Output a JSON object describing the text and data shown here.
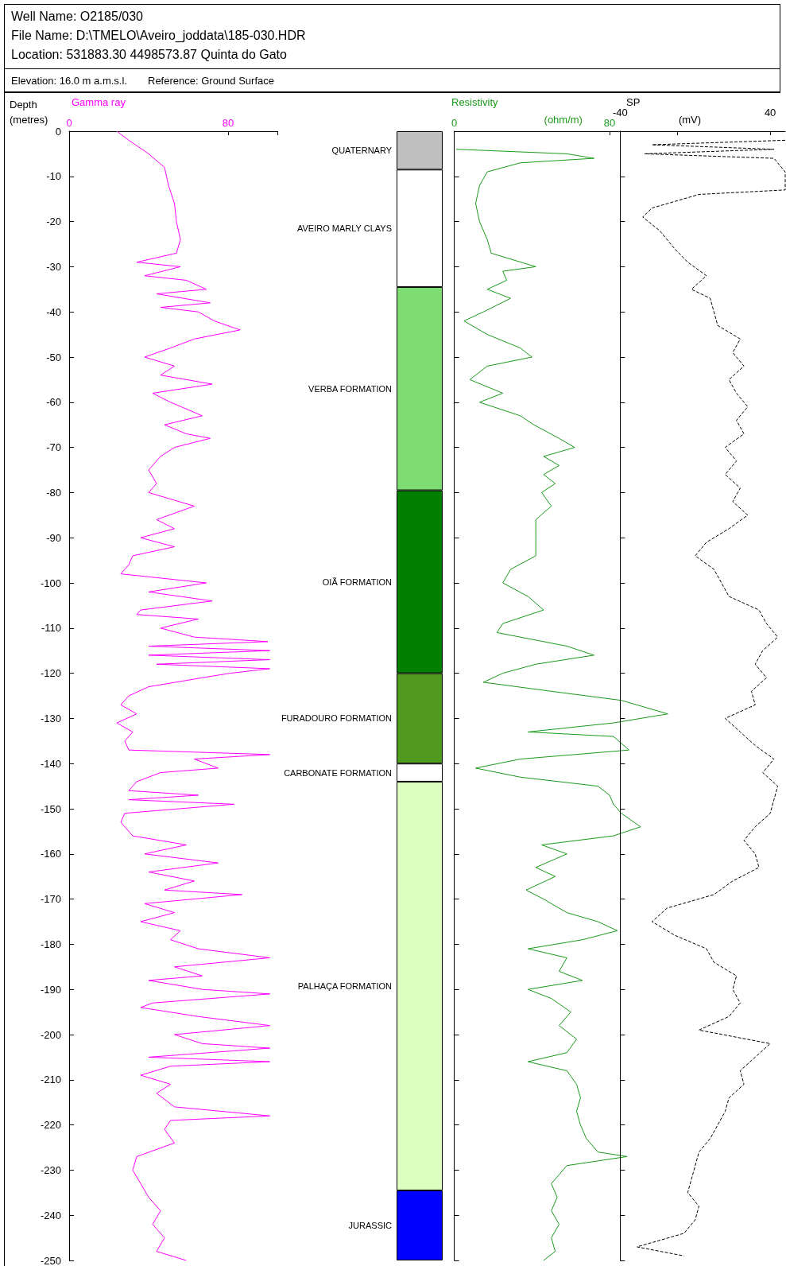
{
  "chart_data": [
    {
      "type": "line",
      "title": "Well Name: O2185/030",
      "subtitle": "File Name: D:\\TMELO\\Aveiro_joddata\\185-030.HDR",
      "annotations": [
        "Location: 531883.30 4498573.87 Quinta do Gato",
        "Elevation: 16.0 m a.m.s.l.",
        "Reference: Ground Surface"
      ],
      "xlabel": "Gamma ray",
      "ylabel": "Depth (metres)",
      "color": "#ff00ff",
      "marker": "none",
      "x": [
        24,
        30,
        40,
        48,
        50,
        53,
        54,
        56,
        54,
        34,
        56,
        38,
        59,
        69,
        44,
        71,
        46,
        65,
        73,
        86,
        63,
        51,
        38,
        53,
        46,
        72,
        42,
        51,
        67,
        48,
        59,
        71,
        53,
        46,
        40,
        44,
        40,
        63,
        44,
        53,
        36,
        53,
        32,
        30,
        26,
        69,
        40,
        72,
        36,
        34,
        65,
        46,
        63,
        100,
        40,
        101,
        40,
        101,
        44,
        101,
        81,
        67,
        40,
        30,
        26,
        34,
        24,
        32,
        28,
        30,
        101,
        63,
        75,
        46,
        34,
        30,
        65,
        30,
        83,
        28,
        26,
        32,
        59,
        38,
        75,
        40,
        63,
        48,
        87,
        38,
        53,
        36,
        56,
        51,
        65,
        101,
        53,
        67,
        40,
        67,
        101,
        42,
        36,
        65,
        101,
        53,
        67,
        101,
        40,
        101,
        51,
        36,
        51,
        44,
        53,
        101,
        51,
        48,
        53,
        34,
        32,
        36,
        40,
        46,
        42,
        48,
        44,
        59
      ],
      "values": [
        0,
        -2,
        -5,
        -8,
        -12,
        -16,
        -20,
        -24,
        -27,
        -29,
        -30,
        -32,
        -33,
        -35,
        -36,
        -38,
        -39,
        -40,
        -42,
        -44,
        -46,
        -48,
        -50,
        -52,
        -54,
        -56,
        -58,
        -60,
        -63,
        -65,
        -67,
        -68,
        -70,
        -72,
        -75,
        -78,
        -80,
        -83,
        -86,
        -88,
        -90,
        -92,
        -94,
        -96,
        -98,
        -100,
        -102,
        -104,
        -106,
        -107,
        -108,
        -110,
        -112,
        -113,
        -114,
        -115,
        -116,
        -117,
        -118,
        -119,
        -120,
        -121,
        -123,
        -125,
        -127,
        -129,
        -131,
        -133,
        -135,
        -137,
        -138,
        -139,
        -141,
        -142,
        -144,
        -146,
        -147,
        -148,
        -149,
        -151,
        -153,
        -156,
        -158,
        -160,
        -162,
        -164,
        -166,
        -168,
        -169,
        -171,
        -173,
        -175,
        -177,
        -179,
        -181,
        -183,
        -185,
        -187,
        -188,
        -190,
        -191,
        -193,
        -194,
        -196,
        -198,
        -200,
        -202,
        -203,
        -205,
        -206,
        -207,
        -209,
        -211,
        -213,
        -216,
        -218,
        -219,
        -221,
        -224,
        -227,
        -230,
        -233,
        -236,
        -239,
        -242,
        -245,
        -248,
        -250
      ],
      "xlim": [
        0,
        105
      ],
      "xticks": [
        0,
        80,
        {
          "value": 105,
          "label": null
        }
      ],
      "ylim": [
        -250,
        0
      ],
      "yticks": [
        0,
        -10,
        -20,
        -30,
        -40,
        -50,
        -60,
        -70,
        -80,
        -90,
        -100,
        -110,
        -120,
        -130,
        -140,
        -150,
        -160,
        -170,
        -180,
        -190,
        -200,
        -210,
        -220,
        -230,
        -240,
        -250
      ]
    },
    {
      "type": "bar",
      "stacked": true,
      "categories": [
        null
      ],
      "ylim": [
        -250,
        0
      ],
      "tick_labels": false,
      "series": [
        {
          "name": "QUATERNARY",
          "color": "#c0c0c0",
          "values": [
            -8.5
          ]
        },
        {
          "name": "AVEIRO MARLY CLAYS",
          "color": "#ffffff",
          "values": [
            -26
          ]
        },
        {
          "name": "VERBA FORMATION",
          "color": "#7ddc72",
          "values": [
            -45
          ]
        },
        {
          "name": "OIÃ FORMATION",
          "color": "#007f00",
          "values": [
            -40.5
          ]
        },
        {
          "name": "FURADOURO FORMATION",
          "color": "#4f9a1f",
          "values": [
            -20
          ]
        },
        {
          "name": "CARBONATE FORMATION",
          "color": "#ffffff",
          "values": [
            -4
          ]
        },
        {
          "name": "PALHAÇA FORMATION",
          "color": "#dcffc0",
          "values": [
            -90.5
          ]
        },
        {
          "name": "JURASSIC",
          "color": "#0000ff",
          "values": [
            -15.5
          ]
        }
      ]
    },
    {
      "type": "line",
      "xlabel": "Resistivity",
      "annotations": [
        "(ohm/m)"
      ],
      "color": "#1a9a1a",
      "marker": "none",
      "tick_labels": "x",
      "x": [
        1,
        58,
        72,
        34,
        17,
        13,
        11,
        13,
        17,
        19,
        42,
        25,
        27,
        17,
        29,
        15,
        5,
        17,
        34,
        40,
        17,
        8,
        25,
        13,
        34,
        41,
        54,
        62,
        46,
        54,
        46,
        52,
        45,
        50,
        42,
        42,
        42,
        29,
        25,
        38,
        46,
        25,
        22,
        58,
        72,
        42,
        25,
        15,
        50,
        86,
        110,
        82,
        38,
        82,
        90,
        34,
        11,
        34,
        74,
        80,
        82,
        86,
        96,
        82,
        45,
        58,
        42,
        52,
        37,
        46,
        58,
        74,
        84,
        66,
        38,
        58,
        54,
        66,
        38,
        50,
        60,
        54,
        63,
        58,
        38,
        58,
        63,
        65,
        63,
        65,
        68,
        74,
        89,
        58,
        54,
        50,
        53,
        50,
        54,
        50,
        52,
        46
      ],
      "values": [
        -4,
        -5,
        -6,
        -7,
        -9,
        -12,
        -16,
        -20,
        -24,
        -27,
        -30,
        -31,
        -33,
        -35,
        -37,
        -40,
        -42,
        -45,
        -48,
        -50,
        -52,
        -55,
        -58,
        -60,
        -63,
        -65,
        -68,
        -70,
        -72,
        -74,
        -76,
        -78,
        -80,
        -83,
        -86,
        -90,
        -94,
        -97,
        -100,
        -103,
        -106,
        -109,
        -111,
        -114,
        -116,
        -118,
        -120,
        -122,
        -124,
        -126,
        -129,
        -131,
        -133,
        -134,
        -137,
        -139,
        -141,
        -143,
        -145,
        -147,
        -149,
        -151,
        -154,
        -156,
        -158,
        -160,
        -163,
        -165,
        -168,
        -170,
        -173,
        -175,
        -177,
        -179,
        -181,
        -183,
        -186,
        -188,
        -190,
        -192,
        -195,
        -198,
        -201,
        -204,
        -206,
        -208,
        -211,
        -214,
        -217,
        -220,
        -223,
        -226,
        -227,
        -229,
        -231,
        -233,
        -236,
        -239,
        -242,
        -245,
        -248,
        -250
      ],
      "xlim": [
        0,
        115
      ],
      "xticks": [
        0,
        80,
        {
          "value": 115,
          "label": null
        }
      ],
      "ylim": [
        -250,
        0
      ],
      "yticks": [
        0,
        -10,
        -20,
        -30,
        -40,
        -50,
        -60,
        -70,
        -80,
        -90,
        -100,
        -110,
        -120,
        -130,
        -140,
        -150,
        -160,
        -170,
        -180,
        -190,
        -200,
        -210,
        -220,
        -230,
        -240,
        -250
      ]
    },
    {
      "type": "line",
      "xlabel": "SP",
      "annotations": [
        "(mV)"
      ],
      "color": "#000000",
      "marker": "none",
      "line_style": "dashed",
      "tick_labels": "x",
      "x": [
        48,
        -23,
        42,
        -27,
        42,
        48,
        48,
        2,
        -23,
        -28,
        -19,
        -11,
        -4,
        6,
        -2,
        8,
        10,
        12,
        24,
        20,
        26,
        18,
        22,
        28,
        22,
        26,
        16,
        22,
        16,
        24,
        20,
        28,
        18,
        6,
        0,
        10,
        14,
        18,
        34,
        38,
        44,
        36,
        32,
        38,
        30,
        32,
        16,
        24,
        32,
        42,
        36,
        44,
        42,
        40,
        32,
        26,
        32,
        34,
        20,
        10,
        -15,
        -23,
        -11,
        6,
        10,
        22,
        20,
        24,
        18,
        2,
        40,
        32,
        24,
        26,
        18,
        16,
        12,
        8,
        2,
        0,
        -2,
        -4,
        2,
        0,
        -6,
        -31,
        -6
      ],
      "values": [
        -2,
        -3,
        -4,
        -5,
        -6,
        -9,
        -13,
        -14,
        -17,
        -19,
        -22,
        -26,
        -29,
        -32,
        -35,
        -37,
        -40,
        -43,
        -46,
        -49,
        -52,
        -55,
        -58,
        -61,
        -64,
        -67,
        -70,
        -73,
        -76,
        -79,
        -82,
        -85,
        -88,
        -91,
        -94,
        -97,
        -100,
        -103,
        -106,
        -109,
        -112,
        -115,
        -118,
        -121,
        -124,
        -127,
        -130,
        -133,
        -136,
        -139,
        -142,
        -145,
        -148,
        -151,
        -154,
        -157,
        -160,
        -163,
        -166,
        -169,
        -172,
        -175,
        -178,
        -181,
        -184,
        -187,
        -190,
        -193,
        -196,
        -199,
        -202,
        -205,
        -208,
        -211,
        -214,
        -217,
        -220,
        -223,
        -226,
        -229,
        -232,
        -235,
        -238,
        -241,
        -244,
        -247,
        -249
      ],
      "xlim": [
        -40,
        48
      ],
      "xticks": [
        -40,
        40
      ],
      "ylim": [
        -250,
        0
      ],
      "yticks": [
        0,
        -10,
        -20,
        -30,
        -40,
        -50,
        -60,
        -70,
        -80,
        -90,
        -100,
        -110,
        -120,
        -130,
        -140,
        -150,
        -160,
        -170,
        -180,
        -190,
        -200,
        -210,
        -220,
        -230,
        -240,
        -250
      ]
    }
  ]
}
